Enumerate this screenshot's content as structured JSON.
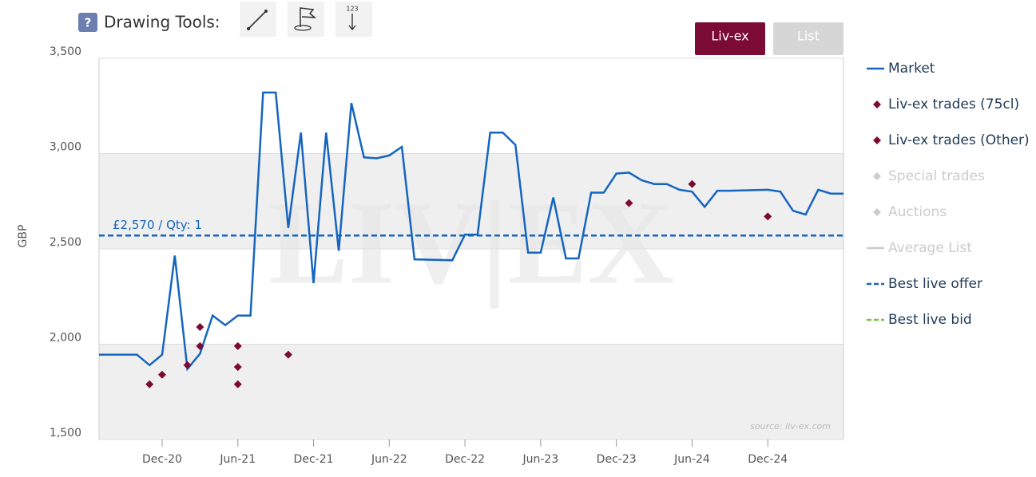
{
  "chart_data": {
    "type": "line",
    "toolbar": {
      "help": "?",
      "label": "Drawing Tools:",
      "tool_number": "123"
    },
    "buttons": [
      "Liv-ex",
      "List"
    ],
    "y_label": "GBP",
    "watermark": "LIV|EX",
    "source": "source: liv-ex.com",
    "xlim": [
      "Jul-20",
      "Jun-25"
    ],
    "xticks": [
      "Dec-20",
      "Jun-21",
      "Dec-21",
      "Jun-22",
      "Dec-22",
      "Jun-23",
      "Dec-23",
      "Jun-24",
      "Dec-24"
    ],
    "ylim": [
      1500,
      3500
    ],
    "yticks": [
      {
        "value": 1500,
        "label": "1,500"
      },
      {
        "value": 2000,
        "label": "2,000"
      },
      {
        "value": 2500,
        "label": "2,500"
      },
      {
        "value": 3000,
        "label": "3,000"
      },
      {
        "value": 3500,
        "label": "3,500"
      }
    ],
    "series": [
      {
        "name": "Market",
        "kind": "line",
        "color": "#1565c0",
        "x": [
          "Jul-20",
          "Oct-20",
          "Nov-20",
          "Dec-20",
          "Jan-21",
          "Feb-21",
          "Mar-21",
          "Apr-21",
          "May-21",
          "Jun-21",
          "Jul-21",
          "Aug-21",
          "Sep-21",
          "Oct-21",
          "Nov-21",
          "Dec-21",
          "Jan-22",
          "Feb-22",
          "Mar-22",
          "Apr-22",
          "May-22",
          "Jun-22",
          "Jul-22",
          "Aug-22",
          "Nov-22",
          "Dec-22",
          "Jan-23",
          "Feb-23",
          "Mar-23",
          "Apr-23",
          "May-23",
          "Jun-23",
          "Jul-23",
          "Aug-23",
          "Sep-23",
          "Oct-23",
          "Nov-23",
          "Dec-23",
          "Jan-24",
          "Feb-24",
          "Mar-24",
          "Apr-24",
          "May-24",
          "Jun-24",
          "Jul-24",
          "Aug-24",
          "Sep-24",
          "Dec-24",
          "Jan-25",
          "Feb-25",
          "Mar-25",
          "Apr-25",
          "May-25",
          "Jun-25"
        ],
        "values": [
          1945,
          1945,
          1890,
          1945,
          2465,
          1870,
          1950,
          2150,
          2100,
          2150,
          2150,
          3320,
          3320,
          2610,
          3110,
          2320,
          3110,
          2490,
          3265,
          2980,
          2975,
          2990,
          3035,
          2445,
          2440,
          2575,
          2575,
          3110,
          3110,
          3045,
          2480,
          2480,
          2770,
          2450,
          2450,
          2795,
          2795,
          2895,
          2900,
          2860,
          2840,
          2840,
          2810,
          2800,
          2720,
          2805,
          2805,
          2810,
          2800,
          2700,
          2680,
          2810,
          2790,
          2790
        ]
      },
      {
        "name": "Liv-ex trades (75cl)",
        "kind": "marker",
        "color": "#7b0a35",
        "x": [
          "Nov-20",
          "Dec-20",
          "Feb-21",
          "Mar-21",
          "Mar-21",
          "Jun-21",
          "Jun-21",
          "Jun-21",
          "Oct-21",
          "Jan-24",
          "Jun-24",
          "Dec-24"
        ],
        "values": [
          1790,
          1840,
          1890,
          1990,
          2090,
          1990,
          1880,
          1790,
          1945,
          2740,
          2840,
          2670
        ]
      },
      {
        "name": "Liv-ex trades (Other)",
        "kind": "marker",
        "color": "#7b0a35",
        "x": [],
        "values": []
      },
      {
        "name": "Special trades",
        "kind": "marker",
        "color": "#cccccc",
        "x": [],
        "values": []
      },
      {
        "name": "Auctions",
        "kind": "marker",
        "color": "#cccccc",
        "x": [],
        "values": []
      },
      {
        "name": "Average List",
        "kind": "line",
        "color": "#cccccc",
        "x": [],
        "values": []
      },
      {
        "name": "Best live offer",
        "kind": "dashed",
        "color": "#1565c0",
        "x": [],
        "values": []
      },
      {
        "name": "Best live bid",
        "kind": "dashed",
        "color": "#7ac143",
        "x": [],
        "values": []
      }
    ],
    "offer": {
      "value": 2570,
      "label": "£2,570 / Qty: 1"
    }
  }
}
